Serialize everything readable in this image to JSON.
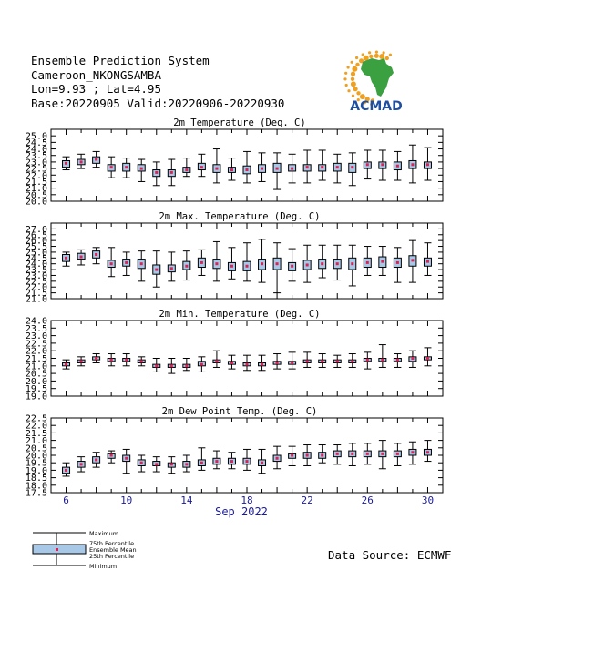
{
  "header": {
    "line1": "Ensemble Prediction System",
    "line2": "Cameroon_NKONGSAMBA",
    "line3": "Lon=9.93 ; Lat=4.95",
    "line4": "Base:20220905 Valid:20220906-20220930"
  },
  "logo": {
    "text": "ACMAD",
    "text_color": "#1f4fa0",
    "africa_color": "#3aa040",
    "ray_color": "#f0a020"
  },
  "source": "Data Source: ECMWF",
  "legend": {
    "max": "Maximum",
    "p75": "75th Percentile",
    "mean": "Ensemble Mean",
    "p25": "25th Percentile",
    "min": "Minimum"
  },
  "colors": {
    "box": "#a8c8e8",
    "mean": "#e02050",
    "whisker": "#000000",
    "xtick": "#1a1aa0"
  },
  "chart_data": [
    {
      "type": "box",
      "title": "2m Temperature (Deg. C)",
      "ylim": [
        20.0,
        25.5
      ],
      "yticks": [
        "20.0",
        "20.5",
        "21.0",
        "21.5",
        "22.0",
        "22.5",
        "23.0",
        "23.5",
        "24.0",
        "24.5",
        "25.0"
      ],
      "x": [
        6,
        7,
        8,
        9,
        10,
        11,
        12,
        13,
        14,
        15,
        16,
        17,
        18,
        19,
        20,
        21,
        22,
        23,
        24,
        25,
        26,
        27,
        28,
        29,
        30
      ],
      "min": [
        22.4,
        22.5,
        22.6,
        21.8,
        21.8,
        21.5,
        21.2,
        21.2,
        21.9,
        21.9,
        21.4,
        21.6,
        21.4,
        21.5,
        20.9,
        21.4,
        21.4,
        21.6,
        21.4,
        21.2,
        21.7,
        21.6,
        21.6,
        21.4,
        21.6
      ],
      "p25": [
        22.6,
        22.8,
        22.9,
        22.3,
        22.3,
        22.3,
        21.9,
        21.9,
        22.2,
        22.4,
        22.2,
        22.2,
        22.1,
        22.2,
        22.2,
        22.3,
        22.3,
        22.3,
        22.3,
        22.2,
        22.5,
        22.5,
        22.4,
        22.5,
        22.5
      ],
      "mean": [
        22.9,
        23.0,
        23.2,
        22.6,
        22.6,
        22.5,
        22.2,
        22.2,
        22.4,
        22.6,
        22.5,
        22.4,
        22.4,
        22.5,
        22.5,
        22.5,
        22.6,
        22.6,
        22.6,
        22.6,
        22.8,
        22.8,
        22.7,
        22.8,
        22.8
      ],
      "p75": [
        23.1,
        23.2,
        23.4,
        22.8,
        22.9,
        22.8,
        22.4,
        22.4,
        22.6,
        22.9,
        22.8,
        22.6,
        22.7,
        22.8,
        22.9,
        22.8,
        22.8,
        22.8,
        22.9,
        22.9,
        23.0,
        23.0,
        23.0,
        23.1,
        23.0
      ],
      "max": [
        23.4,
        23.6,
        23.8,
        23.4,
        23.3,
        23.2,
        23.0,
        23.2,
        23.3,
        23.6,
        24.0,
        23.3,
        23.8,
        23.7,
        23.7,
        23.6,
        23.9,
        23.9,
        23.6,
        23.7,
        23.9,
        23.9,
        23.8,
        24.3,
        24.1
      ]
    },
    {
      "type": "box",
      "title": "2m Max. Temperature (Deg. C)",
      "ylim": [
        21.0,
        27.5
      ],
      "yticks": [
        "21.0",
        "21.5",
        "22.0",
        "22.5",
        "23.0",
        "23.5",
        "24.0",
        "24.5",
        "25.0",
        "25.5",
        "26.0",
        "26.5",
        "27.0"
      ],
      "x": [
        6,
        7,
        8,
        9,
        10,
        11,
        12,
        13,
        14,
        15,
        16,
        17,
        18,
        19,
        20,
        21,
        22,
        23,
        24,
        25,
        26,
        27,
        28,
        29,
        30
      ],
      "min": [
        23.8,
        23.9,
        24.0,
        22.9,
        23.0,
        22.5,
        22.0,
        22.5,
        22.6,
        23.0,
        22.5,
        22.7,
        22.5,
        22.4,
        21.5,
        22.5,
        22.4,
        22.8,
        22.6,
        22.1,
        23.0,
        23.0,
        22.4,
        22.4,
        23.0
      ],
      "p25": [
        24.2,
        24.4,
        24.5,
        23.7,
        23.8,
        23.6,
        23.1,
        23.3,
        23.5,
        23.7,
        23.6,
        23.4,
        23.4,
        23.5,
        23.5,
        23.4,
        23.5,
        23.6,
        23.6,
        23.5,
        23.7,
        23.7,
        23.7,
        23.8,
        23.8
      ],
      "mean": [
        24.5,
        24.6,
        24.8,
        24.0,
        24.1,
        24.0,
        23.5,
        23.6,
        23.8,
        24.1,
        24.0,
        23.8,
        23.8,
        24.0,
        24.0,
        23.8,
        23.9,
        24.0,
        24.0,
        24.0,
        24.1,
        24.2,
        24.1,
        24.3,
        24.2
      ],
      "p75": [
        24.8,
        24.9,
        25.1,
        24.3,
        24.4,
        24.4,
        23.9,
        23.9,
        24.2,
        24.5,
        24.4,
        24.1,
        24.2,
        24.4,
        24.5,
        24.1,
        24.3,
        24.4,
        24.4,
        24.5,
        24.5,
        24.6,
        24.5,
        24.7,
        24.5
      ],
      "max": [
        25.0,
        25.2,
        25.4,
        25.4,
        25.0,
        25.1,
        25.1,
        25.0,
        25.1,
        25.2,
        25.9,
        25.4,
        25.8,
        26.1,
        25.8,
        25.3,
        25.6,
        25.6,
        25.6,
        25.6,
        25.5,
        25.5,
        25.4,
        26.0,
        25.8
      ]
    },
    {
      "type": "box",
      "title": "2m Min. Temperature (Deg. C)",
      "ylim": [
        19.0,
        24.0
      ],
      "yticks": [
        "19.0",
        "19.5",
        "20.0",
        "20.5",
        "21.0",
        "21.5",
        "22.0",
        "22.5",
        "23.0",
        "23.5",
        "24.0"
      ],
      "x": [
        6,
        7,
        8,
        9,
        10,
        11,
        12,
        13,
        14,
        15,
        16,
        17,
        18,
        19,
        20,
        21,
        22,
        23,
        24,
        25,
        26,
        27,
        28,
        29,
        30
      ],
      "min": [
        20.8,
        21.0,
        21.2,
        21.0,
        21.0,
        21.0,
        20.6,
        20.5,
        20.7,
        20.6,
        20.9,
        20.8,
        20.7,
        20.7,
        20.8,
        20.8,
        20.9,
        20.9,
        20.9,
        20.9,
        20.8,
        20.9,
        20.9,
        20.9,
        21.0
      ],
      "p25": [
        21.0,
        21.2,
        21.4,
        21.3,
        21.3,
        21.2,
        20.9,
        20.9,
        20.9,
        21.0,
        21.2,
        21.1,
        21.0,
        21.0,
        21.1,
        21.1,
        21.2,
        21.2,
        21.2,
        21.2,
        21.3,
        21.3,
        21.3,
        21.3,
        21.4
      ],
      "mean": [
        21.1,
        21.3,
        21.5,
        21.4,
        21.4,
        21.3,
        21.0,
        21.0,
        21.0,
        21.1,
        21.3,
        21.2,
        21.1,
        21.1,
        21.2,
        21.2,
        21.3,
        21.3,
        21.3,
        21.3,
        21.4,
        21.4,
        21.4,
        21.5,
        21.5
      ],
      "p75": [
        21.2,
        21.4,
        21.6,
        21.5,
        21.5,
        21.4,
        21.1,
        21.1,
        21.1,
        21.3,
        21.4,
        21.3,
        21.2,
        21.2,
        21.3,
        21.3,
        21.4,
        21.4,
        21.4,
        21.4,
        21.5,
        21.5,
        21.5,
        21.6,
        21.6
      ],
      "max": [
        21.4,
        21.6,
        21.8,
        21.8,
        21.8,
        21.6,
        21.5,
        21.5,
        21.5,
        21.6,
        22.0,
        21.7,
        21.7,
        21.7,
        21.8,
        21.9,
        21.9,
        21.8,
        21.7,
        21.8,
        21.9,
        22.4,
        21.8,
        22.0,
        22.2
      ]
    },
    {
      "type": "box",
      "title": "2m Dew Point Temp. (Deg. C)",
      "ylim": [
        17.5,
        22.5
      ],
      "yticks": [
        "17.5",
        "18.0",
        "18.5",
        "19.0",
        "19.5",
        "20.0",
        "20.5",
        "21.0",
        "21.5",
        "22.0",
        "22.5"
      ],
      "x": [
        6,
        7,
        8,
        9,
        10,
        11,
        12,
        13,
        14,
        15,
        16,
        17,
        18,
        19,
        20,
        21,
        22,
        23,
        24,
        25,
        26,
        27,
        28,
        29,
        30
      ],
      "min": [
        18.6,
        18.9,
        19.2,
        19.5,
        18.8,
        18.9,
        18.9,
        18.8,
        18.9,
        19.0,
        19.1,
        19.1,
        19.0,
        18.8,
        19.1,
        19.3,
        19.3,
        19.5,
        19.4,
        19.3,
        19.4,
        19.1,
        19.3,
        19.4,
        19.6
      ],
      "p25": [
        18.8,
        19.2,
        19.5,
        19.8,
        19.6,
        19.3,
        19.3,
        19.2,
        19.2,
        19.3,
        19.4,
        19.4,
        19.4,
        19.3,
        19.6,
        19.8,
        19.8,
        19.8,
        19.9,
        19.9,
        19.9,
        19.9,
        19.9,
        20.0,
        20.0
      ],
      "mean": [
        19.0,
        19.4,
        19.7,
        20.0,
        19.8,
        19.5,
        19.4,
        19.4,
        19.4,
        19.5,
        19.6,
        19.6,
        19.6,
        19.5,
        19.8,
        20.0,
        20.0,
        20.0,
        20.1,
        20.1,
        20.1,
        20.1,
        20.1,
        20.2,
        20.2
      ],
      "p75": [
        19.2,
        19.6,
        19.9,
        20.1,
        20.0,
        19.7,
        19.6,
        19.5,
        19.6,
        19.7,
        19.8,
        19.8,
        19.8,
        19.7,
        20.0,
        20.1,
        20.2,
        20.2,
        20.3,
        20.3,
        20.3,
        20.3,
        20.3,
        20.4,
        20.4
      ],
      "max": [
        19.5,
        19.9,
        20.2,
        20.3,
        20.4,
        20.0,
        19.9,
        19.9,
        20.0,
        20.5,
        20.3,
        20.2,
        20.4,
        20.4,
        20.6,
        20.6,
        20.7,
        20.7,
        20.7,
        20.8,
        20.8,
        21.0,
        20.8,
        20.9,
        21.0
      ]
    }
  ],
  "xaxis": {
    "ticks": [
      "6",
      "10",
      "14",
      "18",
      "22",
      "26",
      "30"
    ],
    "label": "Sep 2022"
  }
}
